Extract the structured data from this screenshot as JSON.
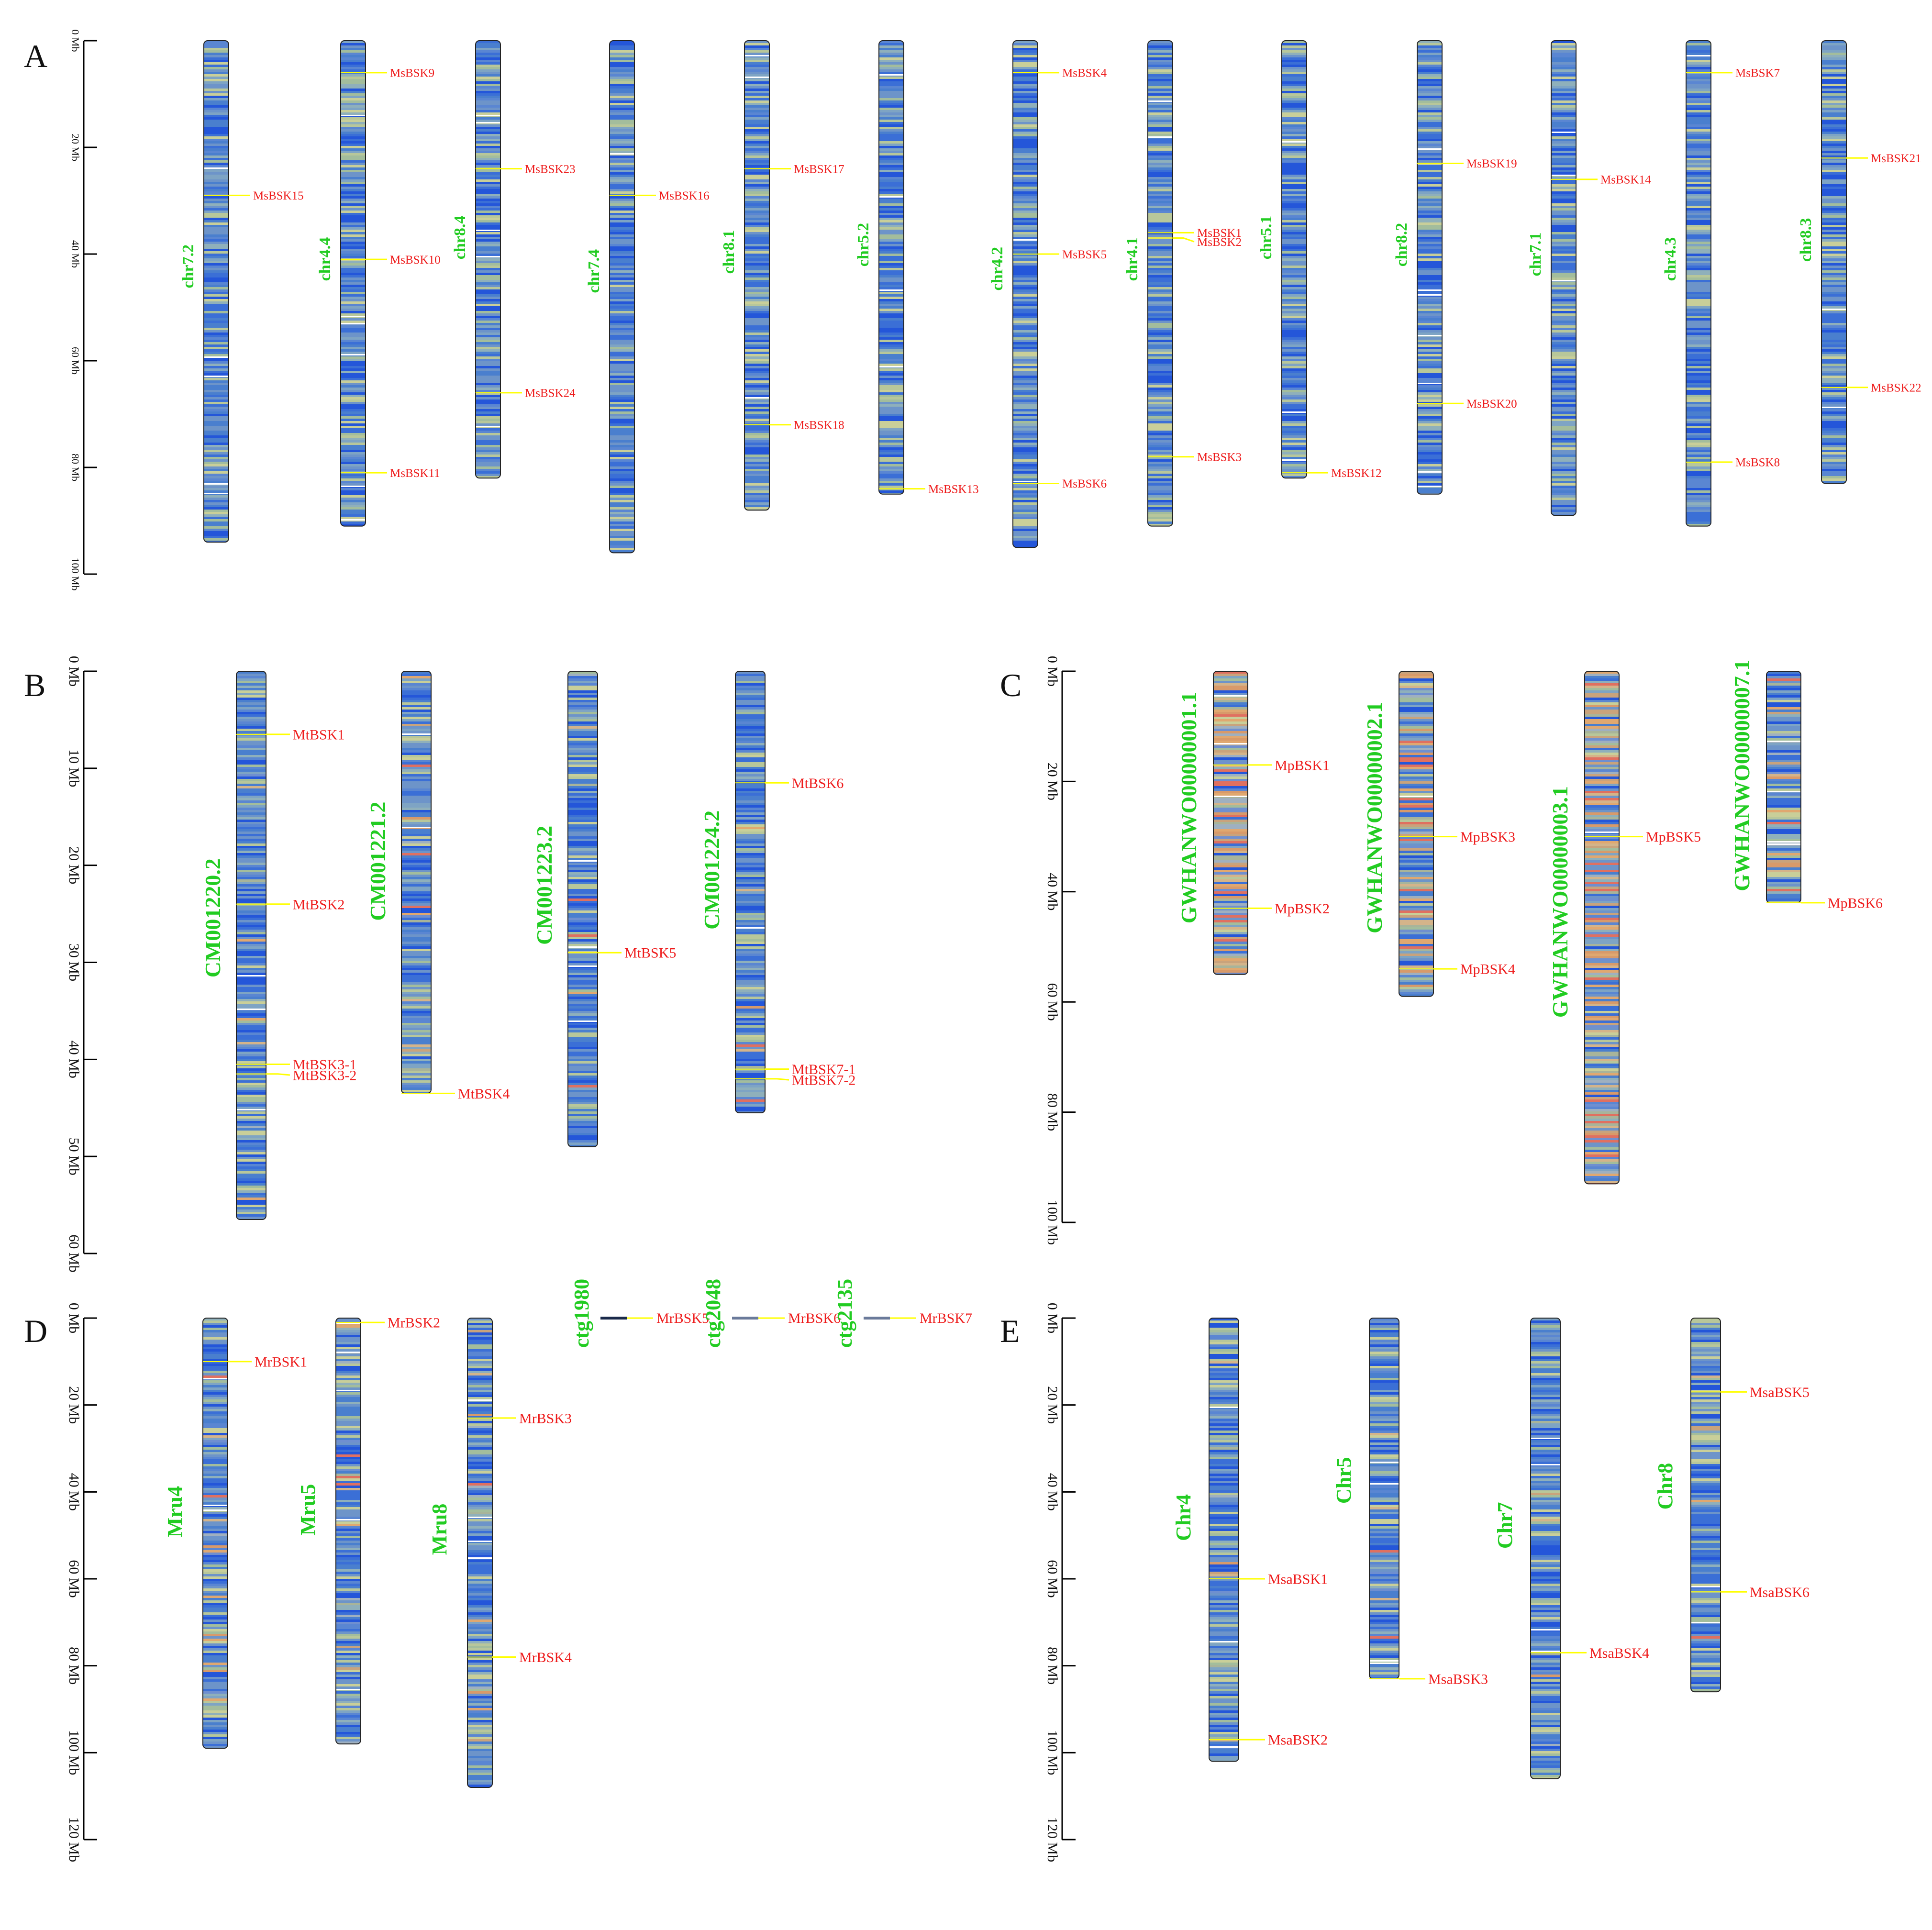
{
  "colors": {
    "chrom_name": "#22cc22",
    "gene_label": "#ee1c1c",
    "leader_line": "#ffff00",
    "axis": "#000000",
    "chrom_outline": "#222222",
    "stripe_palette": [
      "#3b6fd6",
      "#2456d9",
      "#4a7fce",
      "#6d94c9",
      "#8fb0bb",
      "#a3bd9c",
      "#b8c79a",
      "#c9cf99",
      "#7ea4c4",
      "#5a86d2"
    ],
    "stripe_palette_warm": [
      "#d89a6a",
      "#e0a870",
      "#c9a37c",
      "#a8b49a",
      "#e07060",
      "#9fb0c0",
      "#6f8fd0",
      "#d4b48a"
    ]
  },
  "panels": [
    {
      "letter": "A",
      "axis_ticks": [
        "0 Mb",
        "20 Mb",
        "40 Mb",
        "60 Mb",
        "80 Mb",
        "100 Mb"
      ],
      "axis_max": 100,
      "chromosomes": [
        {
          "name": "chr7.2",
          "length": 94,
          "genes": [
            {
              "label": "MsBSK15",
              "pos": 29
            }
          ]
        },
        {
          "name": "chr4.4",
          "length": 91,
          "genes": [
            {
              "label": "MsBSK9",
              "pos": 6
            },
            {
              "label": "MsBSK10",
              "pos": 41
            },
            {
              "label": "MsBSK11",
              "pos": 81
            }
          ]
        },
        {
          "name": "chr8.4",
          "length": 82,
          "genes": [
            {
              "label": "MsBSK23",
              "pos": 24
            },
            {
              "label": "MsBSK24",
              "pos": 66
            }
          ]
        },
        {
          "name": "chr7.4",
          "length": 96,
          "genes": [
            {
              "label": "MsBSK16",
              "pos": 29
            }
          ]
        },
        {
          "name": "chr8.1",
          "length": 88,
          "genes": [
            {
              "label": "MsBSK17",
              "pos": 24
            },
            {
              "label": "MsBSK18",
              "pos": 72
            }
          ]
        },
        {
          "name": "chr5.2",
          "length": 85,
          "genes": [
            {
              "label": "MsBSK13",
              "pos": 84
            }
          ]
        },
        {
          "name": "chr4.2",
          "length": 95,
          "genes": [
            {
              "label": "MsBSK4",
              "pos": 6
            },
            {
              "label": "MsBSK5",
              "pos": 40
            },
            {
              "label": "MsBSK6",
              "pos": 83
            }
          ]
        },
        {
          "name": "chr4.1",
          "length": 91,
          "genes": [
            {
              "label": "MsBSK1",
              "pos": 36
            },
            {
              "label": "MsBSK2",
              "pos": 37
            },
            {
              "label": "MsBSK3",
              "pos": 78
            }
          ]
        },
        {
          "name": "chr5.1",
          "length": 82,
          "genes": [
            {
              "label": "MsBSK12",
              "pos": 81
            }
          ]
        },
        {
          "name": "chr8.2",
          "length": 85,
          "genes": [
            {
              "label": "MsBSK19",
              "pos": 23
            },
            {
              "label": "MsBSK20",
              "pos": 68
            }
          ]
        },
        {
          "name": "chr7.1",
          "length": 89,
          "genes": [
            {
              "label": "MsBSK14",
              "pos": 26
            }
          ]
        },
        {
          "name": "chr4.3",
          "length": 91,
          "genes": [
            {
              "label": "MsBSK7",
              "pos": 6
            },
            {
              "label": "MsBSK8",
              "pos": 79
            }
          ]
        },
        {
          "name": "chr8.3",
          "length": 83,
          "genes": [
            {
              "label": "MsBSK21",
              "pos": 22
            },
            {
              "label": "MsBSK22",
              "pos": 65
            }
          ]
        }
      ]
    },
    {
      "letter": "B",
      "axis_ticks": [
        "0 Mb",
        "10 Mb",
        "20 Mb",
        "30 Mb",
        "40 Mb",
        "50 Mb",
        "60 Mb"
      ],
      "axis_max": 60,
      "chromosomes": [
        {
          "name": "CM001220.2",
          "length": 56.5,
          "genes": [
            {
              "label": "MtBSK1",
              "pos": 6.5
            },
            {
              "label": "MtBSK2",
              "pos": 24
            },
            {
              "label": "MtBSK3-1",
              "pos": 40.5
            },
            {
              "label": "MtBSK3-2",
              "pos": 41.5
            }
          ]
        },
        {
          "name": "CM001221.2",
          "length": 43.5,
          "genes": [
            {
              "label": "MtBSK4",
              "pos": 43.5
            }
          ]
        },
        {
          "name": "CM001223.2",
          "length": 49,
          "genes": [
            {
              "label": "MtBSK5",
              "pos": 29
            }
          ]
        },
        {
          "name": "CM001224.2",
          "length": 45.5,
          "genes": [
            {
              "label": "MtBSK6",
              "pos": 11.5
            },
            {
              "label": "MtBSK7-1",
              "pos": 41
            },
            {
              "label": "MtBSK7-2",
              "pos": 42
            }
          ]
        }
      ]
    },
    {
      "letter": "C",
      "axis_ticks": [
        "0 Mb",
        "20 Mb",
        "40 Mb",
        "60 Mb",
        "80 Mb",
        "100 Mb"
      ],
      "axis_max": 100,
      "chromosomes": [
        {
          "name": "GWHANWO00000001.1",
          "length": 55,
          "genes": [
            {
              "label": "MpBSK1",
              "pos": 17
            },
            {
              "label": "MpBSK2",
              "pos": 43
            }
          ]
        },
        {
          "name": "GWHANWO00000002.1",
          "length": 59,
          "genes": [
            {
              "label": "MpBSK3",
              "pos": 30
            },
            {
              "label": "MpBSK4",
              "pos": 54
            }
          ]
        },
        {
          "name": "GWHANWO00000003.1",
          "length": 93,
          "genes": [
            {
              "label": "MpBSK5",
              "pos": 30
            }
          ]
        },
        {
          "name": "GWHANWO00000007.1",
          "length": 42,
          "genes": [
            {
              "label": "MpBSK6",
              "pos": 42
            }
          ]
        }
      ]
    },
    {
      "letter": "D",
      "axis_ticks": [
        "0 Mb",
        "20 Mb",
        "40 Mb",
        "60 Mb",
        "80 Mb",
        "100 Mb",
        "120 Mb"
      ],
      "axis_max": 120,
      "chromosomes": [
        {
          "name": "Mru4",
          "length": 99,
          "genes": [
            {
              "label": "MrBSK1",
              "pos": 10
            }
          ]
        },
        {
          "name": "Mru5",
          "length": 98,
          "genes": [
            {
              "label": "MrBSK2",
              "pos": 1
            }
          ]
        },
        {
          "name": "Mru8",
          "length": 108,
          "genes": [
            {
              "label": "MrBSK3",
              "pos": 23
            },
            {
              "label": "MrBSK4",
              "pos": 78
            }
          ]
        }
      ],
      "contigs": [
        {
          "name": "ctg1980",
          "gene": "MrBSK5"
        },
        {
          "name": "ctg2048",
          "gene": "MrBSK6"
        },
        {
          "name": "ctg2135",
          "gene": "MrBSK7"
        }
      ]
    },
    {
      "letter": "E",
      "axis_ticks": [
        "0 Mb",
        "20 Mb",
        "40 Mb",
        "60 Mb",
        "80 Mb",
        "100 Mb",
        "120 Mb"
      ],
      "axis_max": 120,
      "chromosomes": [
        {
          "name": "Chr4",
          "length": 102,
          "genes": [
            {
              "label": "MsaBSK1",
              "pos": 60
            },
            {
              "label": "MsaBSK2",
              "pos": 97
            }
          ]
        },
        {
          "name": "Chr5",
          "length": 83,
          "genes": [
            {
              "label": "MsaBSK3",
              "pos": 83
            }
          ]
        },
        {
          "name": "Chr7",
          "length": 106,
          "genes": [
            {
              "label": "MsaBSK4",
              "pos": 77
            }
          ]
        },
        {
          "name": "Chr8",
          "length": 86,
          "genes": [
            {
              "label": "MsaBSK5",
              "pos": 17
            },
            {
              "label": "MsaBSK6",
              "pos": 63
            }
          ]
        }
      ]
    }
  ]
}
